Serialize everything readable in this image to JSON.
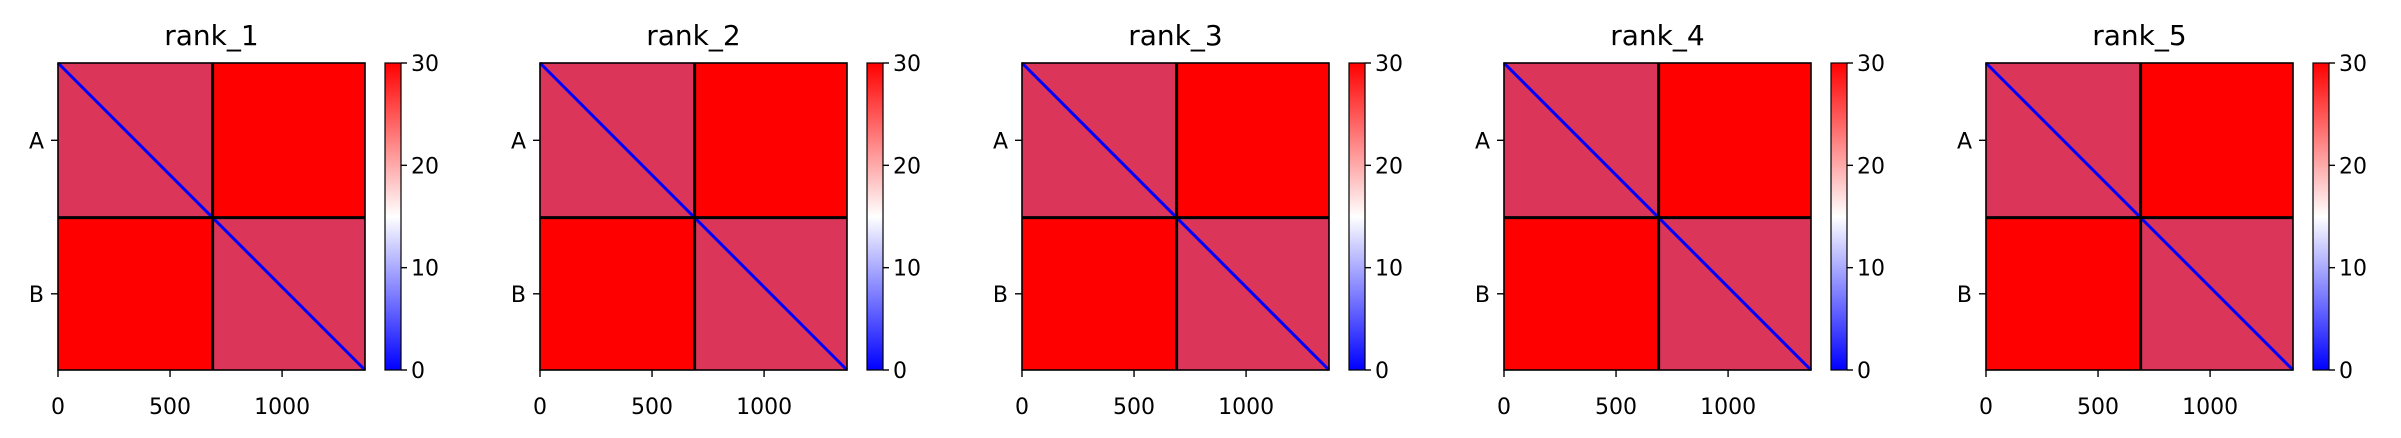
{
  "figure": {
    "colormap": {
      "low": "#0000ff",
      "mid": "#ffffff",
      "high": "#ff0000",
      "vmin": 0,
      "vmax": 30
    },
    "divider_color": "#000000"
  },
  "chart_data": [
    {
      "type": "heatmap",
      "title": "rank_1",
      "xlim": [
        0,
        1370
      ],
      "ylim": [
        0,
        1370
      ],
      "xticks": [
        "0",
        "500",
        "1000"
      ],
      "xtick_values": [
        0,
        500,
        1000
      ],
      "row_labels": [
        "A",
        "B"
      ],
      "chain_boundary": 690,
      "colorbar": {
        "ticks": [
          "0",
          "10",
          "20",
          "30"
        ],
        "tick_values": [
          0,
          10,
          20,
          30
        ]
      },
      "low_value_blocks": [
        {
          "start": 0,
          "end": 690,
          "value": 9
        },
        {
          "start": 690,
          "end": 1370,
          "value": 9
        }
      ]
    },
    {
      "type": "heatmap",
      "title": "rank_2",
      "xlim": [
        0,
        1370
      ],
      "ylim": [
        0,
        1370
      ],
      "xticks": [
        "0",
        "500",
        "1000"
      ],
      "xtick_values": [
        0,
        500,
        1000
      ],
      "row_labels": [
        "A",
        "B"
      ],
      "chain_boundary": 690,
      "colorbar": {
        "ticks": [
          "0",
          "10",
          "20",
          "30"
        ],
        "tick_values": [
          0,
          10,
          20,
          30
        ]
      },
      "low_value_blocks": [
        {
          "start": 0,
          "end": 690,
          "value": 9
        },
        {
          "start": 690,
          "end": 1370,
          "value": 9
        }
      ]
    },
    {
      "type": "heatmap",
      "title": "rank_3",
      "xlim": [
        0,
        1370
      ],
      "ylim": [
        0,
        1370
      ],
      "xticks": [
        "0",
        "500",
        "1000"
      ],
      "xtick_values": [
        0,
        500,
        1000
      ],
      "row_labels": [
        "A",
        "B"
      ],
      "chain_boundary": 690,
      "colorbar": {
        "ticks": [
          "0",
          "10",
          "20",
          "30"
        ],
        "tick_values": [
          0,
          10,
          20,
          30
        ]
      },
      "low_value_blocks": [
        {
          "start": 0,
          "end": 690,
          "value": 9
        },
        {
          "start": 690,
          "end": 1370,
          "value": 9
        }
      ]
    },
    {
      "type": "heatmap",
      "title": "rank_4",
      "xlim": [
        0,
        1370
      ],
      "ylim": [
        0,
        1370
      ],
      "xticks": [
        "0",
        "500",
        "1000"
      ],
      "xtick_values": [
        0,
        500,
        1000
      ],
      "row_labels": [
        "A",
        "B"
      ],
      "chain_boundary": 690,
      "colorbar": {
        "ticks": [
          "0",
          "10",
          "20",
          "30"
        ],
        "tick_values": [
          0,
          10,
          20,
          30
        ]
      },
      "low_value_blocks": [
        {
          "start": 0,
          "end": 690,
          "value": 9
        },
        {
          "start": 690,
          "end": 1370,
          "value": 9
        }
      ]
    },
    {
      "type": "heatmap",
      "title": "rank_5",
      "xlim": [
        0,
        1370
      ],
      "ylim": [
        0,
        1370
      ],
      "xticks": [
        "0",
        "500",
        "1000"
      ],
      "xtick_values": [
        0,
        500,
        1000
      ],
      "row_labels": [
        "A",
        "B"
      ],
      "chain_boundary": 690,
      "colorbar": {
        "ticks": [
          "0",
          "10",
          "20",
          "30"
        ],
        "tick_values": [
          0,
          10,
          20,
          30
        ]
      },
      "low_value_blocks": [
        {
          "start": 0,
          "end": 690,
          "value": 9
        },
        {
          "start": 690,
          "end": 1370,
          "value": 9
        }
      ]
    }
  ]
}
